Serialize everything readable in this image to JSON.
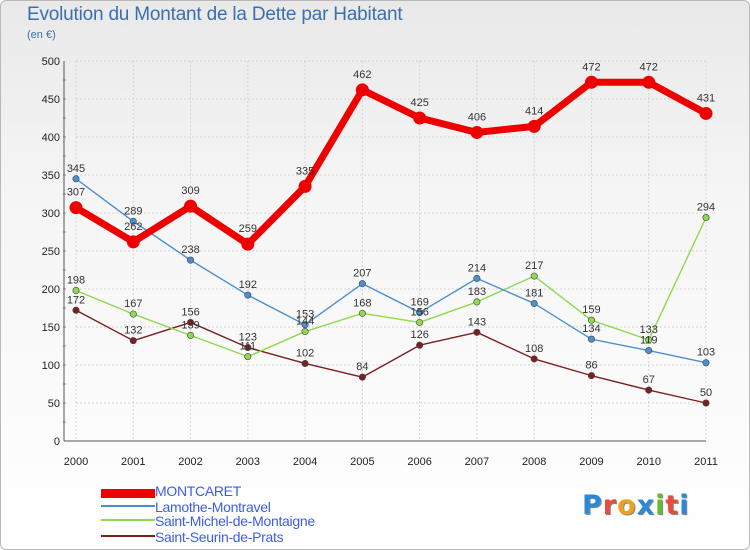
{
  "header": {
    "title": "Evolution du Montant de la Dette par Habitant",
    "unit": "(en €)"
  },
  "brand": {
    "letters": [
      "P",
      "r",
      "o",
      "x",
      "i",
      "t",
      "i"
    ],
    "colors": [
      "#2a8ad6",
      "#e94b3c",
      "#f0a020",
      "#2a8ad6",
      "#68b832",
      "#e94b3c",
      "#2a8ad6"
    ]
  },
  "chart_data": {
    "type": "line",
    "x": [
      "2000",
      "2001",
      "2002",
      "2003",
      "2004",
      "2005",
      "2006",
      "2007",
      "2008",
      "2009",
      "2010",
      "2011"
    ],
    "ylim": [
      0,
      500
    ],
    "yticks": [
      0,
      50,
      100,
      150,
      200,
      250,
      300,
      350,
      400,
      450,
      500
    ],
    "grid": true,
    "legend_position": "bottom-left",
    "series": [
      {
        "name": "MONTCARET",
        "color": "#ee0000",
        "values": [
          307,
          262,
          309,
          259,
          335,
          462,
          425,
          406,
          414,
          472,
          472,
          431
        ],
        "labels": [
          "307",
          "262",
          "309",
          "259",
          "335",
          "462",
          "425",
          "406",
          "414",
          "472",
          "472",
          "431"
        ]
      },
      {
        "name": "Lamothe-Montravel",
        "color": "#4a90d0",
        "values": [
          345,
          289,
          238,
          192,
          153,
          207,
          169,
          214,
          181,
          134,
          119,
          103
        ],
        "labels": [
          "345",
          "289",
          "238",
          "192",
          "153",
          "207",
          "169",
          "214",
          "181",
          "134",
          "119",
          "103"
        ]
      },
      {
        "name": "Saint-Michel-de-Montaigne",
        "color": "#90d850",
        "values": [
          198,
          167,
          139,
          111,
          144,
          168,
          156,
          183,
          217,
          159,
          133,
          294
        ],
        "labels": [
          "198",
          "167",
          "139",
          "111",
          "144",
          "168",
          "156",
          "183",
          "217",
          "159",
          "133",
          "294"
        ]
      },
      {
        "name": "Saint-Seurin-de-Prats",
        "color": "#7a2020",
        "values": [
          172,
          132,
          156,
          123,
          102,
          84,
          126,
          143,
          108,
          86,
          67,
          50
        ],
        "labels": [
          "172",
          "132",
          "156",
          "123",
          "102",
          "84",
          "126",
          "143",
          "108",
          "86",
          "67",
          "50"
        ]
      }
    ]
  }
}
